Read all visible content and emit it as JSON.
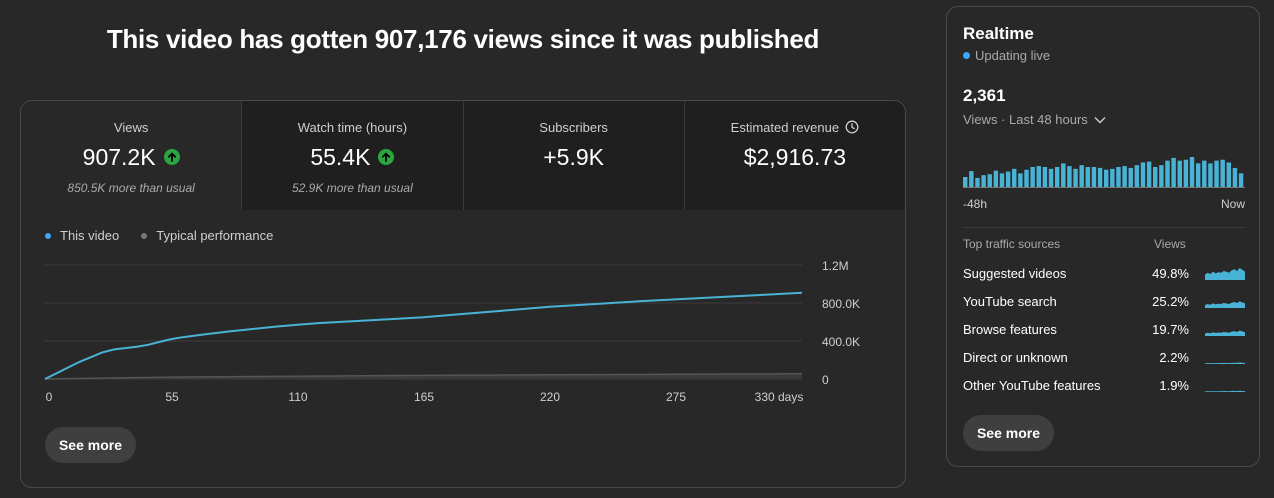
{
  "headline": "This video has gotten 907,176 views since it was published",
  "metrics": [
    {
      "label": "Views",
      "value": "907.2K",
      "note": "850.5K more than usual"
    },
    {
      "label": "Watch time (hours)",
      "value": "55.4K",
      "note": "52.9K more than usual"
    },
    {
      "label": "Subscribers",
      "value": "+5.9K",
      "note": ""
    },
    {
      "label": "Estimated revenue",
      "value": "$2,916.73",
      "note": ""
    }
  ],
  "chart": {
    "legend": [
      "This video",
      "Typical performance"
    ],
    "y_ticks": [
      "1.2M",
      "800.0K",
      "400.0K",
      "0"
    ],
    "x_ticks": [
      "0",
      "55",
      "110",
      "165",
      "220",
      "275",
      "330 days"
    ]
  },
  "chart_data": {
    "type": "line",
    "xlabel": "",
    "ylabel": "",
    "ylim": [
      0,
      1200000
    ],
    "xlim": [
      0,
      330
    ],
    "series": [
      {
        "name": "This video",
        "color": "#3ea6ff",
        "x": [
          0,
          5,
          10,
          15,
          20,
          25,
          30,
          40,
          45,
          50,
          55,
          60,
          70,
          80,
          90,
          100,
          110,
          120,
          135,
          150,
          165,
          180,
          200,
          220,
          240,
          260,
          280,
          300,
          320,
          330
        ],
        "y": [
          0,
          60000,
          120000,
          180000,
          230000,
          280000,
          310000,
          340000,
          360000,
          390000,
          420000,
          440000,
          470000,
          500000,
          525000,
          550000,
          570000,
          590000,
          610000,
          630000,
          650000,
          680000,
          720000,
          760000,
          790000,
          820000,
          845000,
          870000,
          895000,
          907000
        ]
      },
      {
        "name": "Typical performance",
        "color": "#606060",
        "x": [
          0,
          55,
          110,
          165,
          220,
          275,
          330
        ],
        "y": [
          0,
          20000,
          30000,
          38000,
          44000,
          50000,
          56000
        ]
      }
    ]
  },
  "see_more": "See more",
  "colors": {
    "accent": "#3ea6ff",
    "positive": "#2ba640",
    "line": "#49b3d6"
  },
  "realtime": {
    "title": "Realtime",
    "live_label": "Updating live",
    "count": "2,361",
    "sub_label": "Views · Last 48 hours",
    "axis_left": "-48h",
    "axis_right": "Now",
    "bars": [
      22,
      35,
      20,
      26,
      28,
      36,
      30,
      34,
      40,
      30,
      38,
      44,
      46,
      44,
      40,
      44,
      52,
      46,
      40,
      48,
      44,
      44,
      42,
      38,
      40,
      44,
      46,
      42,
      48,
      54,
      56,
      44,
      48,
      58,
      64,
      58,
      60,
      66,
      52,
      58,
      52,
      58,
      60,
      54,
      42,
      30
    ],
    "sources_header": "Top traffic sources",
    "views_header": "Views",
    "sources": [
      {
        "name": "Suggested videos",
        "pct": "49.8%",
        "level": 1.0
      },
      {
        "name": "YouTube search",
        "pct": "25.2%",
        "level": 0.55
      },
      {
        "name": "Browse features",
        "pct": "19.7%",
        "level": 0.45
      },
      {
        "name": "Direct or unknown",
        "pct": "2.2%",
        "level": 0.12
      },
      {
        "name": "Other YouTube features",
        "pct": "1.9%",
        "level": 0.1
      }
    ],
    "see_more": "See more"
  }
}
